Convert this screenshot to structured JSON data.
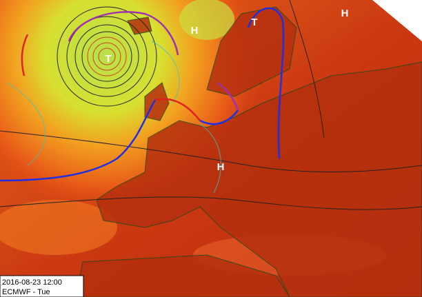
{
  "map": {
    "pressure_labels": [
      "T",
      "H",
      "T",
      "H",
      "H"
    ]
  },
  "info_box": {
    "timestamp": "2016-08-23 12:00",
    "model": "ECMWF - Tue"
  }
}
